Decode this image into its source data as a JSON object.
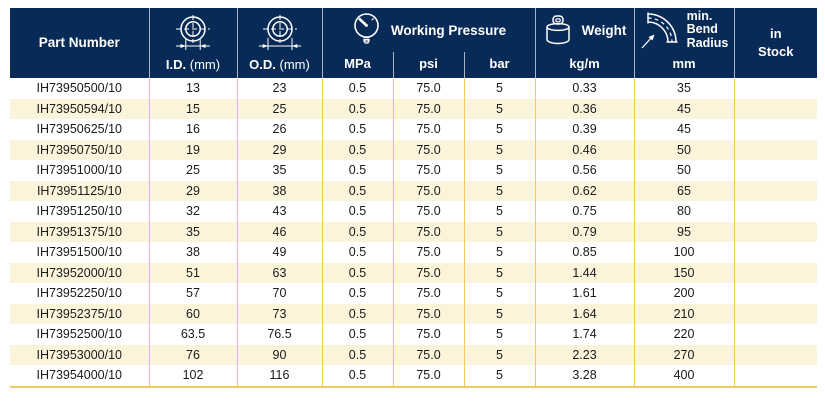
{
  "table": {
    "columns": {
      "part_number": "Part Number",
      "id_label": "I.D.",
      "id_unit": "(mm)",
      "od_label": "O.D.",
      "od_unit": "(mm)",
      "working_pressure": "Working Pressure",
      "mpa": "MPa",
      "psi": "psi",
      "bar": "bar",
      "weight": "Weight",
      "weight_unit": "kg/m",
      "bend_radius": "min.\nBend\nRadius",
      "bend_unit": "mm",
      "in_stock": "in\nStock"
    },
    "icons": {
      "id": "inner-diameter-icon",
      "od": "outer-diameter-icon",
      "pressure": "pressure-gauge-icon",
      "weight": "weight-icon",
      "bend": "bend-radius-icon"
    },
    "rows": [
      {
        "part": "IH73950500/10",
        "id": "13",
        "od": "23",
        "mpa": "0.5",
        "psi": "75.0",
        "bar": "5",
        "weight": "0.33",
        "bend": "35",
        "stock": ""
      },
      {
        "part": "IH73950594/10",
        "id": "15",
        "od": "25",
        "mpa": "0.5",
        "psi": "75.0",
        "bar": "5",
        "weight": "0.36",
        "bend": "45",
        "stock": ""
      },
      {
        "part": "IH73950625/10",
        "id": "16",
        "od": "26",
        "mpa": "0.5",
        "psi": "75.0",
        "bar": "5",
        "weight": "0.39",
        "bend": "45",
        "stock": ""
      },
      {
        "part": "IH73950750/10",
        "id": "19",
        "od": "29",
        "mpa": "0.5",
        "psi": "75.0",
        "bar": "5",
        "weight": "0.46",
        "bend": "50",
        "stock": ""
      },
      {
        "part": "IH73951000/10",
        "id": "25",
        "od": "35",
        "mpa": "0.5",
        "psi": "75.0",
        "bar": "5",
        "weight": "0.56",
        "bend": "50",
        "stock": ""
      },
      {
        "part": "IH73951125/10",
        "id": "29",
        "od": "38",
        "mpa": "0.5",
        "psi": "75.0",
        "bar": "5",
        "weight": "0.62",
        "bend": "65",
        "stock": ""
      },
      {
        "part": "IH73951250/10",
        "id": "32",
        "od": "43",
        "mpa": "0.5",
        "psi": "75.0",
        "bar": "5",
        "weight": "0.75",
        "bend": "80",
        "stock": ""
      },
      {
        "part": "IH73951375/10",
        "id": "35",
        "od": "46",
        "mpa": "0.5",
        "psi": "75.0",
        "bar": "5",
        "weight": "0.79",
        "bend": "95",
        "stock": ""
      },
      {
        "part": "IH73951500/10",
        "id": "38",
        "od": "49",
        "mpa": "0.5",
        "psi": "75.0",
        "bar": "5",
        "weight": "0.85",
        "bend": "100",
        "stock": ""
      },
      {
        "part": "IH73952000/10",
        "id": "51",
        "od": "63",
        "mpa": "0.5",
        "psi": "75.0",
        "bar": "5",
        "weight": "1.44",
        "bend": "150",
        "stock": ""
      },
      {
        "part": "IH73952250/10",
        "id": "57",
        "od": "70",
        "mpa": "0.5",
        "psi": "75.0",
        "bar": "5",
        "weight": "1.61",
        "bend": "200",
        "stock": ""
      },
      {
        "part": "IH73952375/10",
        "id": "60",
        "od": "73",
        "mpa": "0.5",
        "psi": "75.0",
        "bar": "5",
        "weight": "1.64",
        "bend": "210",
        "stock": ""
      },
      {
        "part": "IH73952500/10",
        "id": "63.5",
        "od": "76.5",
        "mpa": "0.5",
        "psi": "75.0",
        "bar": "5",
        "weight": "1.74",
        "bend": "220",
        "stock": ""
      },
      {
        "part": "IH73953000/10",
        "id": "76",
        "od": "90",
        "mpa": "0.5",
        "psi": "75.0",
        "bar": "5",
        "weight": "2.23",
        "bend": "270",
        "stock": ""
      },
      {
        "part": "IH73954000/10",
        "id": "102",
        "od": "116",
        "mpa": "0.5",
        "psi": "75.0",
        "bar": "5",
        "weight": "3.28",
        "bend": "400",
        "stock": ""
      }
    ]
  },
  "colors": {
    "header_bg": "#082a56",
    "header_divider": "#a7b4c6",
    "grid_yellow": "#f2c95f",
    "row_alt": "#fcf4da",
    "body_text": "#1a1a1a"
  }
}
